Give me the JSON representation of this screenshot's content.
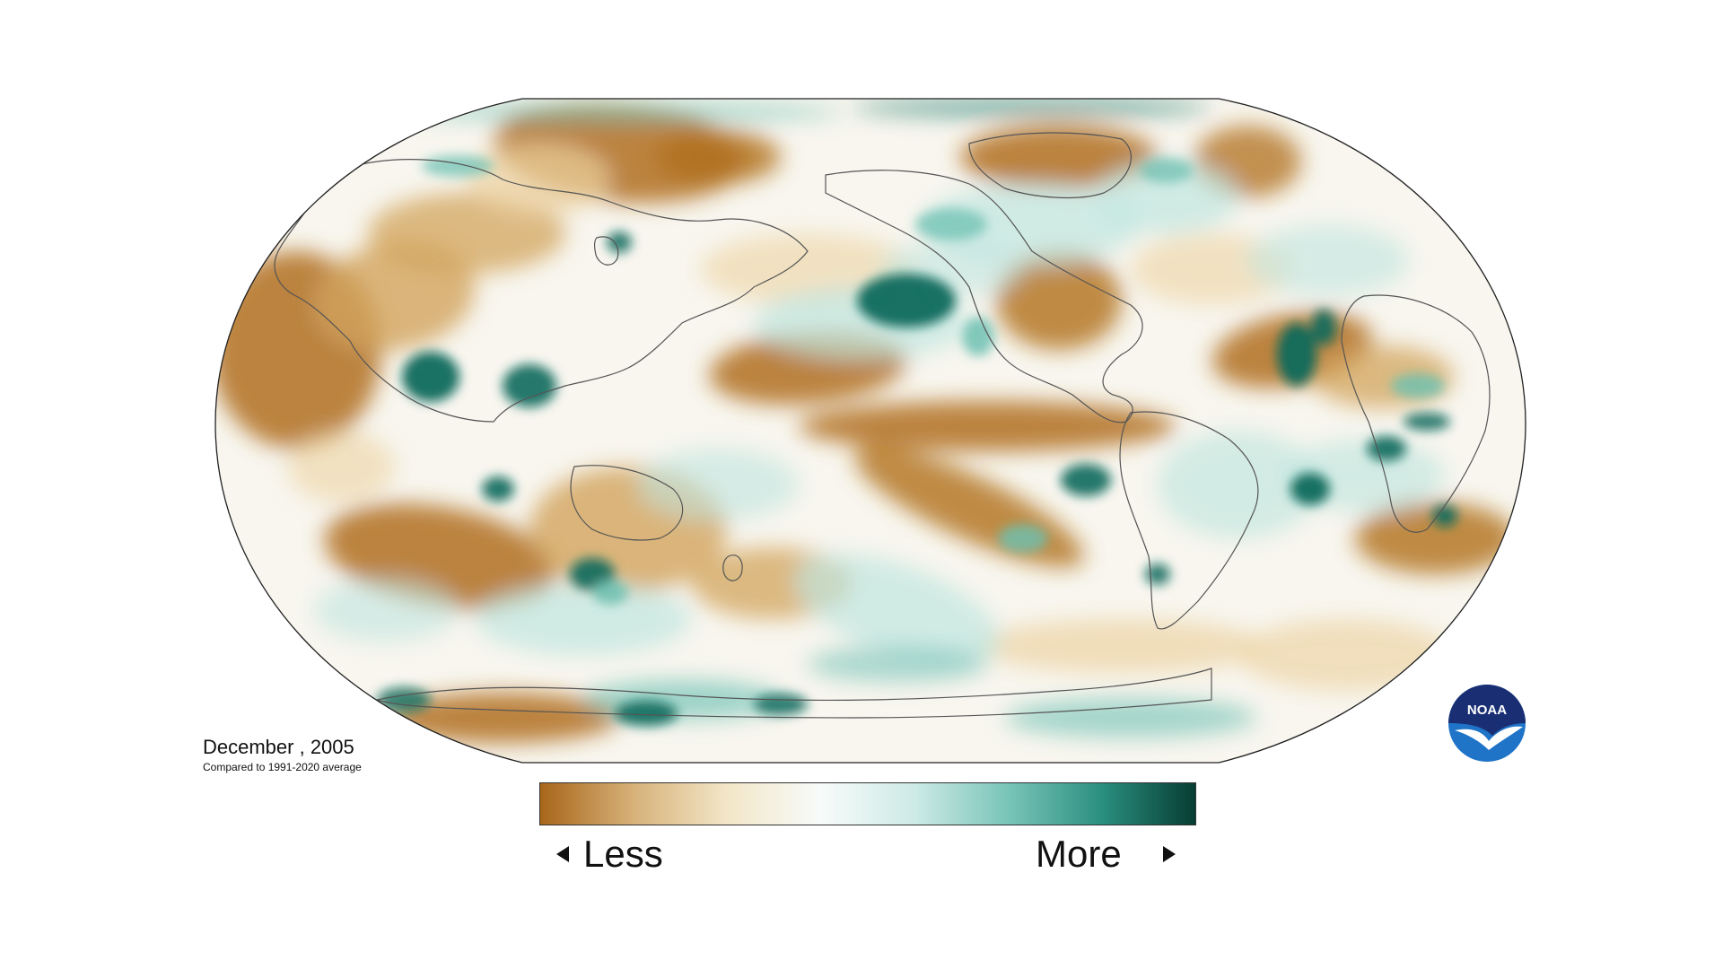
{
  "caption": {
    "title": "December , 2005",
    "subtitle": "Compared to 1991-2020 average"
  },
  "legend": {
    "less_label": "Less",
    "more_label": "More",
    "gradient_stops": [
      "#a8661a",
      "#d7b27a",
      "#f3e6c8",
      "#f7fbfa",
      "#cdeae6",
      "#79c4b8",
      "#2a8f7f",
      "#073d33"
    ]
  },
  "logo": {
    "text": "NOAA",
    "icon": "noaa-logo-icon"
  },
  "colors": {
    "dry_strong": "#b06f1d",
    "dry_mid": "#d2a45c",
    "dry_light": "#ecd3a2",
    "wet_light": "#bfe5df",
    "wet_mid": "#6cc0b2",
    "wet_strong": "#0b6a5d",
    "coastline": "#555555",
    "neutral": "#f8f6ef"
  }
}
